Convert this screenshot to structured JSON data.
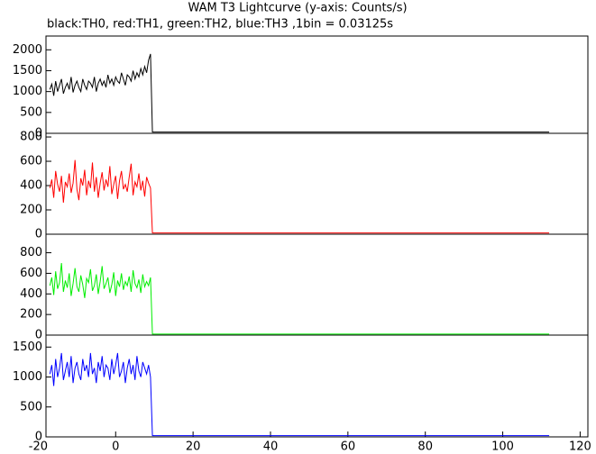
{
  "title": "WAM T3 Lightcurve (y-axis: Counts/s)",
  "subtitle": "black:TH0, red:TH1, green:TH2, blue:TH3 ,1bin = 0.03125s",
  "chart_data": [
    {
      "type": "line",
      "xlim": [
        -18,
        122
      ],
      "ylim": [
        0,
        2330
      ],
      "yticks": [
        0,
        500,
        1000,
        1500,
        2000
      ],
      "x": [
        -17,
        -16.5,
        -16,
        -15.5,
        -15,
        -14.5,
        -14,
        -13.5,
        -13,
        -12.5,
        -12,
        -11.5,
        -11,
        -10.5,
        -10,
        -9.5,
        -9,
        -8.5,
        -8,
        -7.5,
        -7,
        -6.5,
        -6,
        -5.5,
        -5,
        -4.5,
        -4,
        -3.5,
        -3,
        -2.5,
        -2,
        -1.5,
        -1,
        -0.5,
        0,
        0.5,
        1,
        1.5,
        2,
        2.5,
        3,
        3.5,
        4,
        4.5,
        5,
        5.5,
        6,
        6.5,
        7,
        7.5,
        8,
        8.5,
        9,
        9.5,
        112
      ],
      "series": [
        {
          "color": "#000000",
          "values": [
            1050,
            1180,
            900,
            1250,
            1000,
            1150,
            1300,
            950,
            1100,
            1200,
            1050,
            1350,
            980,
            1150,
            1250,
            1100,
            1000,
            1300,
            1150,
            1050,
            1250,
            1200,
            1100,
            1350,
            1000,
            1200,
            1300,
            1150,
            1250,
            1100,
            1400,
            1200,
            1300,
            1150,
            1350,
            1250,
            1200,
            1450,
            1300,
            1150,
            1400,
            1350,
            1250,
            1500,
            1300,
            1450,
            1350,
            1550,
            1400,
            1600,
            1450,
            1750,
            1900,
            30,
            30
          ]
        }
      ]
    },
    {
      "type": "line",
      "xlim": [
        -18,
        122
      ],
      "ylim": [
        0,
        830
      ],
      "yticks": [
        0,
        200,
        400,
        600,
        800
      ],
      "x": [
        -17,
        -16.5,
        -16,
        -15.5,
        -15,
        -14.5,
        -14,
        -13.5,
        -13,
        -12.5,
        -12,
        -11.5,
        -11,
        -10.5,
        -10,
        -9.5,
        -9,
        -8.5,
        -8,
        -7.5,
        -7,
        -6.5,
        -6,
        -5.5,
        -5,
        -4.5,
        -4,
        -3.5,
        -3,
        -2.5,
        -2,
        -1.5,
        -1,
        -0.5,
        0,
        0.5,
        1,
        1.5,
        2,
        2.5,
        3,
        3.5,
        4,
        4.5,
        5,
        5.5,
        6,
        6.5,
        7,
        7.5,
        8,
        8.5,
        9,
        9.5,
        112
      ],
      "series": [
        {
          "color": "#ff0000",
          "values": [
            380,
            450,
            300,
            520,
            410,
            350,
            480,
            260,
            430,
            390,
            500,
            340,
            420,
            610,
            370,
            280,
            460,
            400,
            530,
            320,
            440,
            380,
            590,
            350,
            470,
            300,
            420,
            510,
            360,
            450,
            390,
            560,
            330,
            410,
            480,
            290,
            440,
            520,
            370,
            410,
            350,
            470,
            580,
            320,
            430,
            390,
            500,
            360,
            440,
            310,
            470,
            420,
            380,
            10,
            10
          ]
        }
      ]
    },
    {
      "type": "line",
      "xlim": [
        -18,
        122
      ],
      "ylim": [
        0,
        980
      ],
      "yticks": [
        0,
        200,
        400,
        600,
        800
      ],
      "x": [
        -17,
        -16.5,
        -16,
        -15.5,
        -15,
        -14.5,
        -14,
        -13.5,
        -13,
        -12.5,
        -12,
        -11.5,
        -11,
        -10.5,
        -10,
        -9.5,
        -9,
        -8.5,
        -8,
        -7.5,
        -7,
        -6.5,
        -6,
        -5.5,
        -5,
        -4.5,
        -4,
        -3.5,
        -3,
        -2.5,
        -2,
        -1.5,
        -1,
        -0.5,
        0,
        0.5,
        1,
        1.5,
        2,
        2.5,
        3,
        3.5,
        4,
        4.5,
        5,
        5.5,
        6,
        6.5,
        7,
        7.5,
        8,
        8.5,
        9,
        9.5,
        112
      ],
      "series": [
        {
          "color": "#00ee00",
          "values": [
            480,
            560,
            390,
            620,
            450,
            510,
            700,
            420,
            530,
            460,
            600,
            380,
            500,
            650,
            470,
            420,
            580,
            490,
            360,
            550,
            510,
            640,
            430,
            480,
            590,
            400,
            520,
            670,
            450,
            500,
            560,
            410,
            490,
            610,
            380,
            530,
            470,
            600,
            440,
            520,
            480,
            570,
            420,
            630,
            500,
            460,
            540,
            410,
            590,
            470,
            520,
            480,
            560,
            10,
            10
          ]
        }
      ]
    },
    {
      "type": "line",
      "xlim": [
        -18,
        122
      ],
      "ylim": [
        0,
        1700
      ],
      "yticks": [
        0,
        500,
        1000,
        1500
      ],
      "xticks": [
        -20,
        0,
        20,
        40,
        60,
        80,
        100,
        120
      ],
      "x": [
        -17,
        -16.5,
        -16,
        -15.5,
        -15,
        -14.5,
        -14,
        -13.5,
        -13,
        -12.5,
        -12,
        -11.5,
        -11,
        -10.5,
        -10,
        -9.5,
        -9,
        -8.5,
        -8,
        -7.5,
        -7,
        -6.5,
        -6,
        -5.5,
        -5,
        -4.5,
        -4,
        -3.5,
        -3,
        -2.5,
        -2,
        -1.5,
        -1,
        -0.5,
        0,
        0.5,
        1,
        1.5,
        2,
        2.5,
        3,
        3.5,
        4,
        4.5,
        5,
        5.5,
        6,
        6.5,
        7,
        7.5,
        8,
        8.5,
        9,
        9.5,
        112
      ],
      "series": [
        {
          "color": "#0000ff",
          "values": [
            1050,
            1200,
            850,
            1300,
            1000,
            1150,
            1400,
            950,
            1100,
            1250,
            1000,
            1350,
            900,
            1150,
            1250,
            1050,
            950,
            1300,
            1100,
            1200,
            1000,
            1400,
            1050,
            1150,
            900,
            1250,
            1100,
            1350,
            1000,
            1200,
            1150,
            950,
            1300,
            1050,
            1200,
            1400,
            1000,
            1100,
            1250,
            900,
            1150,
            1300,
            1050,
            1200,
            950,
            1350,
            1100,
            1000,
            1250,
            1150,
            1050,
            1200,
            1000,
            20,
            20
          ]
        }
      ]
    }
  ]
}
